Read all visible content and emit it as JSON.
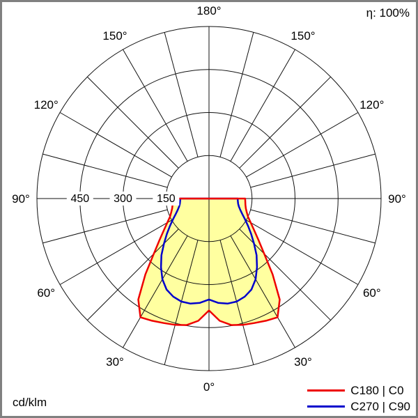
{
  "meta": {
    "efficiency_label": "η: 100%",
    "unit_label": "cd/klm"
  },
  "chart_data": {
    "type": "polar",
    "description": "Polar luminous intensity distribution curve",
    "unit_label": "cd/klm",
    "efficiency_label": "η: 100%",
    "angle_labels_deg": [
      0,
      30,
      60,
      90,
      120,
      150,
      180
    ],
    "angle_grid_step_deg": 15,
    "radial_gridlines": [
      150,
      300,
      450,
      600
    ],
    "radial_tick_labels": [
      150,
      300,
      450
    ],
    "radial_max": 600,
    "gamma_deg": [
      0,
      5,
      10,
      15,
      20,
      25,
      30,
      35,
      40,
      45,
      50,
      55,
      60,
      65,
      70,
      75,
      80,
      85,
      90
    ],
    "series": [
      {
        "name": "C180 | C0",
        "color": "#ee0000",
        "fill": "#ffffa0",
        "values": [
          390,
          428,
          448,
          456,
          462,
          470,
          478,
          430,
          345,
          272,
          225,
          192,
          168,
          150,
          140,
          133,
          129,
          127,
          126
        ]
      },
      {
        "name": "C270 | C90",
        "color": "#0000cc",
        "fill": null,
        "values": [
          352,
          365,
          372,
          372,
          364,
          350,
          325,
          292,
          258,
          222,
          192,
          166,
          145,
          128,
          116,
          108,
          103,
          101,
          100
        ]
      }
    ],
    "colors": {
      "grid": "#111111",
      "background": "#ffffff",
      "frame_border": "#808080",
      "text": "#000000"
    }
  }
}
